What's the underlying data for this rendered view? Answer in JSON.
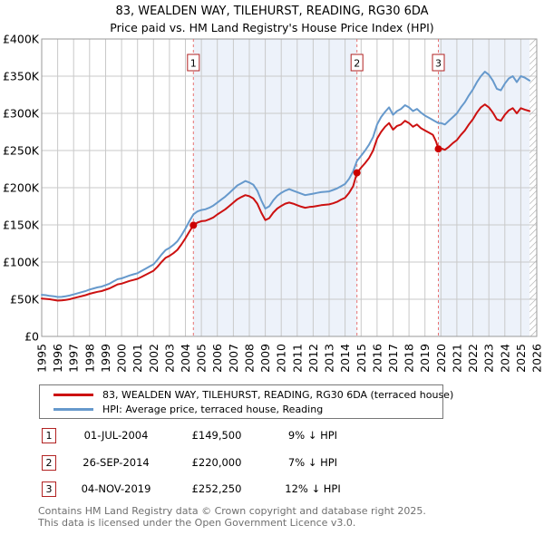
{
  "title": "83, WEALDEN WAY, TILEHURST, READING, RG30 6DA",
  "subtitle": "Price paid vs. HM Land Registry's House Price Index (HPI)",
  "chart_data": {
    "type": "line",
    "x_range": [
      1995,
      2026
    ],
    "ylim": [
      0,
      400000
    ],
    "grid": true,
    "band_color": "#edf2fa",
    "grid_color": "#c9c9c9",
    "border_color": "#999999",
    "dashed_line_color": "#e87272",
    "marker_box_border": "#b22222",
    "y_ticks": [
      "£0",
      "£50K",
      "£100K",
      "£150K",
      "£200K",
      "£250K",
      "£300K",
      "£350K",
      "£400K"
    ],
    "x_ticks": [
      1995,
      1996,
      1997,
      1998,
      1999,
      2000,
      2001,
      2002,
      2003,
      2004,
      2005,
      2006,
      2007,
      2008,
      2009,
      2010,
      2011,
      2012,
      2013,
      2014,
      2015,
      2016,
      2017,
      2018,
      2019,
      2020,
      2021,
      2022,
      2023,
      2024,
      2025,
      2026
    ],
    "ownership_bands": [
      [
        2004.5,
        2014.74
      ],
      [
        2019.84,
        2025.55
      ]
    ],
    "future_hatch_start": 2025.55,
    "sales": [
      {
        "label": "1",
        "x": 2004.5,
        "price": 149500
      },
      {
        "label": "2",
        "x": 2014.74,
        "price": 220000
      },
      {
        "label": "3",
        "x": 2019.84,
        "price": 252250
      }
    ],
    "series": [
      {
        "name": "HPI: Average price, terraced house, Reading",
        "color": "#6699cc",
        "points": [
          [
            1995.0,
            56000
          ],
          [
            1995.25,
            55500
          ],
          [
            1995.5,
            54500
          ],
          [
            1995.75,
            54000
          ],
          [
            1996.0,
            53000
          ],
          [
            1996.25,
            53200
          ],
          [
            1996.5,
            54000
          ],
          [
            1996.75,
            55000
          ],
          [
            1997.0,
            56500
          ],
          [
            1997.25,
            58000
          ],
          [
            1997.5,
            59500
          ],
          [
            1997.75,
            61000
          ],
          [
            1998.0,
            63000
          ],
          [
            1998.25,
            64500
          ],
          [
            1998.5,
            66000
          ],
          [
            1998.75,
            67000
          ],
          [
            1999.0,
            69000
          ],
          [
            1999.25,
            71000
          ],
          [
            1999.5,
            74000
          ],
          [
            1999.75,
            77000
          ],
          [
            2000.0,
            78000
          ],
          [
            2000.25,
            80000
          ],
          [
            2000.5,
            82000
          ],
          [
            2000.75,
            83500
          ],
          [
            2001.0,
            85000
          ],
          [
            2001.25,
            88000
          ],
          [
            2001.5,
            91000
          ],
          [
            2001.75,
            94000
          ],
          [
            2002.0,
            97000
          ],
          [
            2002.25,
            103000
          ],
          [
            2002.5,
            110000
          ],
          [
            2002.75,
            116000
          ],
          [
            2003.0,
            119000
          ],
          [
            2003.25,
            123000
          ],
          [
            2003.5,
            128000
          ],
          [
            2003.75,
            136000
          ],
          [
            2004.0,
            145000
          ],
          [
            2004.25,
            155000
          ],
          [
            2004.5,
            164000
          ],
          [
            2004.75,
            168000
          ],
          [
            2005.0,
            170000
          ],
          [
            2005.25,
            171000
          ],
          [
            2005.5,
            173000
          ],
          [
            2005.75,
            176000
          ],
          [
            2006.0,
            180000
          ],
          [
            2006.25,
            184000
          ],
          [
            2006.5,
            188000
          ],
          [
            2006.75,
            193000
          ],
          [
            2007.0,
            198000
          ],
          [
            2007.25,
            203000
          ],
          [
            2007.5,
            206000
          ],
          [
            2007.75,
            209000
          ],
          [
            2008.0,
            207000
          ],
          [
            2008.25,
            204000
          ],
          [
            2008.5,
            196000
          ],
          [
            2008.75,
            183000
          ],
          [
            2009.0,
            172000
          ],
          [
            2009.25,
            175000
          ],
          [
            2009.5,
            183000
          ],
          [
            2009.75,
            189000
          ],
          [
            2010.0,
            193000
          ],
          [
            2010.25,
            196000
          ],
          [
            2010.5,
            198000
          ],
          [
            2010.75,
            196000
          ],
          [
            2011.0,
            194000
          ],
          [
            2011.25,
            192000
          ],
          [
            2011.5,
            190000
          ],
          [
            2011.75,
            191000
          ],
          [
            2012.0,
            192000
          ],
          [
            2012.25,
            193000
          ],
          [
            2012.5,
            194000
          ],
          [
            2013.0,
            195000
          ],
          [
            2013.25,
            197000
          ],
          [
            2013.5,
            199000
          ],
          [
            2013.75,
            202000
          ],
          [
            2014.0,
            205000
          ],
          [
            2014.25,
            212000
          ],
          [
            2014.5,
            222000
          ],
          [
            2014.74,
            236000
          ],
          [
            2015.0,
            243000
          ],
          [
            2015.25,
            250000
          ],
          [
            2015.5,
            258000
          ],
          [
            2015.75,
            268000
          ],
          [
            2016.0,
            285000
          ],
          [
            2016.25,
            295000
          ],
          [
            2016.5,
            302000
          ],
          [
            2016.75,
            308000
          ],
          [
            2017.0,
            298000
          ],
          [
            2017.25,
            303000
          ],
          [
            2017.5,
            306000
          ],
          [
            2017.75,
            311000
          ],
          [
            2018.0,
            308000
          ],
          [
            2018.25,
            303000
          ],
          [
            2018.5,
            306000
          ],
          [
            2018.75,
            301000
          ],
          [
            2019.0,
            297000
          ],
          [
            2019.25,
            294000
          ],
          [
            2019.5,
            291000
          ],
          [
            2019.84,
            287000
          ],
          [
            2020.0,
            287000
          ],
          [
            2020.25,
            285000
          ],
          [
            2020.5,
            290000
          ],
          [
            2020.75,
            295000
          ],
          [
            2021.0,
            300000
          ],
          [
            2021.25,
            308000
          ],
          [
            2021.5,
            315000
          ],
          [
            2021.75,
            324000
          ],
          [
            2022.0,
            332000
          ],
          [
            2022.25,
            342000
          ],
          [
            2022.5,
            350000
          ],
          [
            2022.75,
            356000
          ],
          [
            2023.0,
            352000
          ],
          [
            2023.25,
            344000
          ],
          [
            2023.5,
            333000
          ],
          [
            2023.75,
            331000
          ],
          [
            2024.0,
            340000
          ],
          [
            2024.25,
            347000
          ],
          [
            2024.5,
            350000
          ],
          [
            2024.75,
            342000
          ],
          [
            2025.0,
            350000
          ],
          [
            2025.25,
            348000
          ],
          [
            2025.55,
            344000
          ]
        ]
      },
      {
        "name": "83, WEALDEN WAY, TILEHURST, READING, RG30 6DA (terraced house)",
        "color": "#cc1111",
        "points": [
          [
            1995.0,
            51000
          ],
          [
            1995.25,
            50500
          ],
          [
            1995.5,
            50000
          ],
          [
            1995.75,
            49200
          ],
          [
            1996.0,
            48200
          ],
          [
            1996.25,
            48400
          ],
          [
            1996.5,
            49200
          ],
          [
            1996.75,
            50000
          ],
          [
            1997.0,
            51500
          ],
          [
            1997.25,
            52800
          ],
          [
            1997.5,
            54200
          ],
          [
            1997.75,
            55500
          ],
          [
            1998.0,
            57300
          ],
          [
            1998.25,
            58700
          ],
          [
            1998.5,
            60000
          ],
          [
            1998.75,
            61000
          ],
          [
            1999.0,
            62800
          ],
          [
            1999.25,
            64600
          ],
          [
            1999.5,
            67300
          ],
          [
            1999.75,
            70000
          ],
          [
            2000.0,
            71000
          ],
          [
            2000.25,
            72800
          ],
          [
            2000.5,
            74600
          ],
          [
            2000.75,
            76000
          ],
          [
            2001.0,
            77400
          ],
          [
            2001.25,
            80000
          ],
          [
            2001.5,
            82800
          ],
          [
            2001.75,
            85500
          ],
          [
            2002.0,
            88300
          ],
          [
            2002.25,
            93700
          ],
          [
            2002.5,
            100000
          ],
          [
            2002.75,
            105600
          ],
          [
            2003.0,
            108300
          ],
          [
            2003.25,
            112000
          ],
          [
            2003.5,
            116500
          ],
          [
            2003.75,
            123800
          ],
          [
            2004.0,
            132000
          ],
          [
            2004.25,
            141000
          ],
          [
            2004.5,
            149500
          ],
          [
            2004.75,
            153000
          ],
          [
            2005.0,
            155000
          ],
          [
            2005.25,
            155500
          ],
          [
            2005.5,
            157500
          ],
          [
            2005.75,
            160000
          ],
          [
            2006.0,
            164000
          ],
          [
            2006.25,
            167500
          ],
          [
            2006.5,
            171000
          ],
          [
            2006.75,
            175500
          ],
          [
            2007.0,
            180000
          ],
          [
            2007.25,
            184500
          ],
          [
            2007.5,
            187500
          ],
          [
            2007.75,
            190000
          ],
          [
            2008.0,
            188500
          ],
          [
            2008.25,
            185500
          ],
          [
            2008.5,
            178500
          ],
          [
            2008.75,
            166500
          ],
          [
            2009.0,
            156500
          ],
          [
            2009.25,
            159000
          ],
          [
            2009.5,
            166500
          ],
          [
            2009.75,
            172000
          ],
          [
            2010.0,
            175500
          ],
          [
            2010.25,
            178500
          ],
          [
            2010.5,
            180000
          ],
          [
            2010.75,
            178500
          ],
          [
            2011.0,
            176500
          ],
          [
            2011.25,
            174500
          ],
          [
            2011.5,
            173000
          ],
          [
            2011.75,
            174000
          ],
          [
            2012.0,
            174500
          ],
          [
            2012.25,
            175500
          ],
          [
            2012.5,
            176500
          ],
          [
            2013.0,
            177500
          ],
          [
            2013.25,
            179000
          ],
          [
            2013.5,
            181000
          ],
          [
            2013.75,
            184000
          ],
          [
            2014.0,
            186500
          ],
          [
            2014.25,
            193000
          ],
          [
            2014.5,
            202000
          ],
          [
            2014.74,
            220000
          ],
          [
            2015.0,
            227000
          ],
          [
            2015.25,
            233000
          ],
          [
            2015.5,
            240000
          ],
          [
            2015.75,
            250000
          ],
          [
            2016.0,
            266000
          ],
          [
            2016.25,
            275000
          ],
          [
            2016.5,
            282000
          ],
          [
            2016.75,
            287000
          ],
          [
            2017.0,
            278000
          ],
          [
            2017.25,
            283000
          ],
          [
            2017.5,
            285000
          ],
          [
            2017.75,
            290000
          ],
          [
            2018.0,
            287000
          ],
          [
            2018.25,
            282000
          ],
          [
            2018.5,
            285000
          ],
          [
            2018.75,
            280000
          ],
          [
            2019.0,
            277000
          ],
          [
            2019.25,
            274000
          ],
          [
            2019.5,
            271000
          ],
          [
            2019.7,
            262000
          ],
          [
            2019.84,
            252250
          ],
          [
            2020.0,
            253000
          ],
          [
            2020.25,
            251000
          ],
          [
            2020.5,
            255000
          ],
          [
            2020.75,
            260000
          ],
          [
            2021.0,
            264000
          ],
          [
            2021.25,
            271000
          ],
          [
            2021.5,
            277000
          ],
          [
            2021.75,
            285000
          ],
          [
            2022.0,
            292000
          ],
          [
            2022.25,
            301000
          ],
          [
            2022.5,
            308000
          ],
          [
            2022.75,
            312000
          ],
          [
            2023.0,
            308000
          ],
          [
            2023.25,
            301000
          ],
          [
            2023.5,
            292000
          ],
          [
            2023.75,
            290000
          ],
          [
            2024.0,
            298000
          ],
          [
            2024.25,
            304000
          ],
          [
            2024.5,
            307000
          ],
          [
            2024.75,
            300000
          ],
          [
            2025.0,
            307000
          ],
          [
            2025.25,
            305000
          ],
          [
            2025.55,
            303000
          ]
        ]
      }
    ]
  },
  "legend": {
    "items": [
      {
        "label": "83, WEALDEN WAY, TILEHURST, READING, RG30 6DA (terraced house)",
        "series_index": 1
      },
      {
        "label": "HPI: Average price, terraced house, Reading",
        "series_index": 0
      }
    ]
  },
  "transactions": [
    {
      "num": "1",
      "date": "01-JUL-2004",
      "price": "£149,500",
      "hpi_note": "9% ↓ HPI"
    },
    {
      "num": "2",
      "date": "26-SEP-2014",
      "price": "£220,000",
      "hpi_note": "7% ↓ HPI"
    },
    {
      "num": "3",
      "date": "04-NOV-2019",
      "price": "£252,250",
      "hpi_note": "12% ↓ HPI"
    }
  ],
  "footer": {
    "line1": "Contains HM Land Registry data © Crown copyright and database right 2025.",
    "line2": "This data is licensed under the Open Government Licence v3.0."
  }
}
